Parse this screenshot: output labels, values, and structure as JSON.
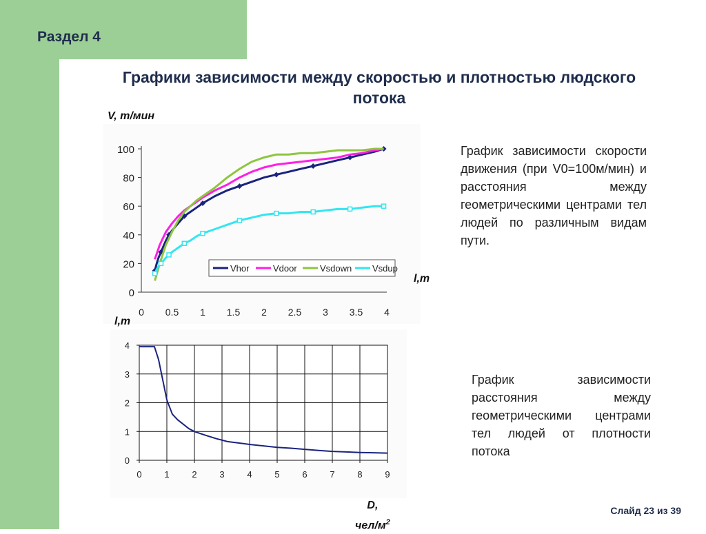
{
  "section": "Раздел 4",
  "title": "Графики зависимости между скоростью и плотностью людского потока",
  "desc1": "График зависимости скорости движения (при V0=100м/мин) и расстояния между геометрическими центрами тел людей по различным видам пути.",
  "desc2": "График зависимости расстояния между геометрическими центрами тел людей от плотности потока",
  "slide": "Слайд 23 из 39",
  "colors": {
    "green": "#9ccf95",
    "navy": "#1f2d4d",
    "vhor": "#1a237e",
    "vdoor": "#ff1ee6",
    "vsdown": "#8dc63f",
    "vsdup": "#33e6f0"
  },
  "chart_data": [
    {
      "type": "line",
      "ylabel": "V, m/мин",
      "xlabel": "l,m",
      "xlim": [
        0,
        4
      ],
      "ylim": [
        0,
        100
      ],
      "x_ticks": [
        "0",
        "0.5",
        "1",
        "1.5",
        "2",
        "2.5",
        "3",
        "3.5",
        "4"
      ],
      "y_ticks": [
        "0",
        "20",
        "40",
        "60",
        "80",
        "100"
      ],
      "legend_position": "bottom-right",
      "series": [
        {
          "name": "Vhor",
          "color": "#1a237e",
          "marker": "diamond",
          "x": [
            0.22,
            0.25,
            0.28,
            0.32,
            0.36,
            0.4,
            0.45,
            0.5,
            0.6,
            0.7,
            0.8,
            0.9,
            1.0,
            1.2,
            1.4,
            1.6,
            1.8,
            2.0,
            2.2,
            2.4,
            2.6,
            2.8,
            3.0,
            3.2,
            3.4,
            3.6,
            3.8,
            3.95
          ],
          "y": [
            15,
            20,
            24,
            28,
            32,
            36,
            40,
            43,
            48,
            53,
            56,
            59,
            62,
            67,
            71,
            74,
            77,
            80,
            82,
            84,
            86,
            88,
            90,
            92,
            94,
            96,
            98,
            100
          ]
        },
        {
          "name": "Vdoor",
          "color": "#ff1ee6",
          "marker": "none",
          "x": [
            0.22,
            0.3,
            0.4,
            0.5,
            0.6,
            0.7,
            0.8,
            0.9,
            1.0,
            1.2,
            1.4,
            1.6,
            1.8,
            2.0,
            2.2,
            2.4,
            2.6,
            2.8,
            3.0,
            3.2,
            3.4,
            3.6,
            3.8,
            3.95
          ],
          "y": [
            23,
            33,
            42,
            48,
            53,
            57,
            60,
            63,
            66,
            71,
            75,
            80,
            84,
            87,
            89,
            90,
            91,
            92,
            93,
            94,
            96,
            97,
            99,
            100
          ]
        },
        {
          "name": "Vsdown",
          "color": "#8dc63f",
          "marker": "none",
          "x": [
            0.22,
            0.3,
            0.4,
            0.5,
            0.6,
            0.7,
            0.8,
            0.9,
            1.0,
            1.2,
            1.4,
            1.6,
            1.8,
            2.0,
            2.2,
            2.4,
            2.6,
            2.8,
            3.0,
            3.2,
            3.4,
            3.6,
            3.8,
            3.95
          ],
          "y": [
            8,
            20,
            33,
            42,
            50,
            56,
            60,
            64,
            67,
            73,
            80,
            86,
            91,
            94,
            96,
            96,
            97,
            97,
            98,
            99,
            99,
            99,
            100,
            100
          ]
        },
        {
          "name": "Vsdup",
          "color": "#33e6f0",
          "marker": "square",
          "x": [
            0.22,
            0.25,
            0.28,
            0.32,
            0.36,
            0.4,
            0.45,
            0.5,
            0.6,
            0.7,
            0.8,
            0.9,
            1.0,
            1.2,
            1.4,
            1.6,
            1.8,
            2.0,
            2.2,
            2.4,
            2.6,
            2.8,
            3.0,
            3.2,
            3.4,
            3.6,
            3.8,
            3.95
          ],
          "y": [
            13,
            16,
            18,
            20,
            22,
            24,
            26,
            28,
            31,
            34,
            36,
            39,
            41,
            44,
            47,
            50,
            52,
            54,
            55,
            55,
            56,
            56,
            57,
            58,
            58,
            59,
            60,
            60
          ]
        }
      ]
    },
    {
      "type": "line",
      "ylabel": "l,m",
      "xlabel": "D, чел/м²",
      "xlabel_line1": "D,",
      "xlabel_line2": "чел/м",
      "xlabel_sup": "2",
      "xlim": [
        0,
        9
      ],
      "ylim": [
        0,
        4
      ],
      "x_ticks": [
        "0",
        "1",
        "2",
        "3",
        "4",
        "5",
        "6",
        "7",
        "8",
        "9"
      ],
      "y_ticks": [
        "0",
        "1",
        "2",
        "3",
        "4"
      ],
      "series": [
        {
          "name": "",
          "color": "#1a237e",
          "x": [
            0,
            0.2,
            0.4,
            0.55,
            0.7,
            0.85,
            1.0,
            1.2,
            1.4,
            1.6,
            1.8,
            2.0,
            2.4,
            2.8,
            3.2,
            3.6,
            4.0,
            4.5,
            5.0,
            5.5,
            6.0,
            6.5,
            7.0,
            7.5,
            8.0,
            8.5,
            9.0
          ],
          "y": [
            3.95,
            3.95,
            3.95,
            3.95,
            3.5,
            2.8,
            2.1,
            1.6,
            1.4,
            1.25,
            1.1,
            1.0,
            0.87,
            0.75,
            0.65,
            0.6,
            0.55,
            0.5,
            0.45,
            0.42,
            0.38,
            0.34,
            0.31,
            0.29,
            0.27,
            0.26,
            0.25
          ]
        }
      ]
    }
  ]
}
